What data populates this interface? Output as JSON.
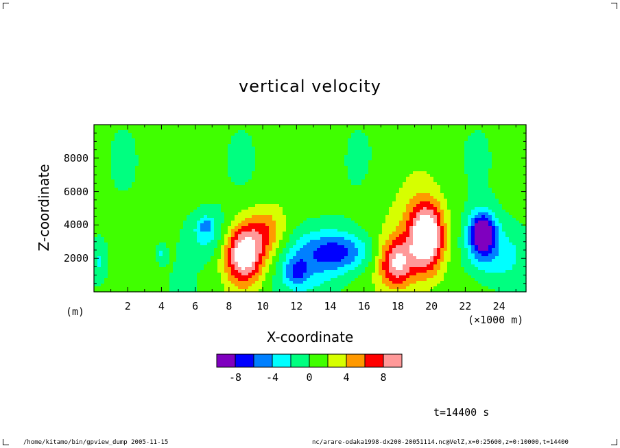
{
  "chart_data": {
    "type": "heatmap",
    "title": "vertical velocity",
    "xlabel": "X-coordinate",
    "ylabel": "Z-coordinate",
    "x_unit": "(×1000 m)",
    "y_unit": "(m)",
    "xlim": [
      0,
      25.6
    ],
    "ylim": [
      0,
      10000
    ],
    "x_ticks": [
      "2",
      "4",
      "6",
      "8",
      "10",
      "12",
      "14",
      "16",
      "18",
      "20",
      "22",
      "24"
    ],
    "y_ticks": [
      "2000",
      "4000",
      "6000",
      "8000"
    ],
    "colorbar": {
      "levels": [
        "-8",
        "-4",
        "0",
        "4",
        "8"
      ],
      "bin_edges": [
        -10,
        -8,
        -6,
        -4,
        -2,
        0,
        2,
        4,
        6,
        8,
        10
      ],
      "colors": [
        "#7f00bf",
        "#0000ff",
        "#0080ff",
        "#00ffff",
        "#00ff80",
        "#40ff00",
        "#d6ff00",
        "#ff9900",
        "#ff0000",
        "#ff9999"
      ],
      "overflow_color": "#ffffff"
    },
    "background_value": 1,
    "features": [
      {
        "x": 8.9,
        "z": 2200,
        "peak": 11,
        "sx": 0.8,
        "sz": 1200
      },
      {
        "x": 10.2,
        "z": 3600,
        "peak": 5,
        "sx": 0.9,
        "sz": 1100
      },
      {
        "x": 19.7,
        "z": 3300,
        "peak": 12,
        "sx": 0.7,
        "sz": 1400
      },
      {
        "x": 17.9,
        "z": 1700,
        "peak": 8,
        "sx": 0.7,
        "sz": 1000
      },
      {
        "x": 18.7,
        "z": 2600,
        "peak": 3,
        "sx": 1.4,
        "sz": 2400
      },
      {
        "x": 23.0,
        "z": 3500,
        "peak": -11,
        "sx": 0.55,
        "sz": 900
      },
      {
        "x": 23.7,
        "z": 2200,
        "peak": -4,
        "sx": 1.3,
        "sz": 1300
      },
      {
        "x": 14.5,
        "z": 2400,
        "peak": -6,
        "sx": 1.4,
        "sz": 800
      },
      {
        "x": 13.0,
        "z": 1800,
        "peak": -3,
        "sx": 1.8,
        "sz": 1500
      },
      {
        "x": 12.0,
        "z": 1200,
        "peak": -4.5,
        "sx": 0.5,
        "sz": 600
      },
      {
        "x": 6.7,
        "z": 3500,
        "peak": -3.5,
        "sx": 0.8,
        "sz": 1000
      },
      {
        "x": 6.6,
        "z": 4000,
        "peak": -3,
        "sx": 0.3,
        "sz": 300
      },
      {
        "x": 0.3,
        "z": 1800,
        "peak": -3,
        "sx": 0.4,
        "sz": 900
      },
      {
        "x": 4.0,
        "z": 2300,
        "peak": -2.5,
        "sx": 0.2,
        "sz": 400
      }
    ],
    "time_label": "t=14400 s",
    "footer_left": "/home/kitamo/bin/gpview_dump  2005-11-15",
    "footer_right": "nc/arare-odaka1998-dx200-20051114.nc@VelZ,x=0:25600,z=0:10000,t=14400"
  }
}
